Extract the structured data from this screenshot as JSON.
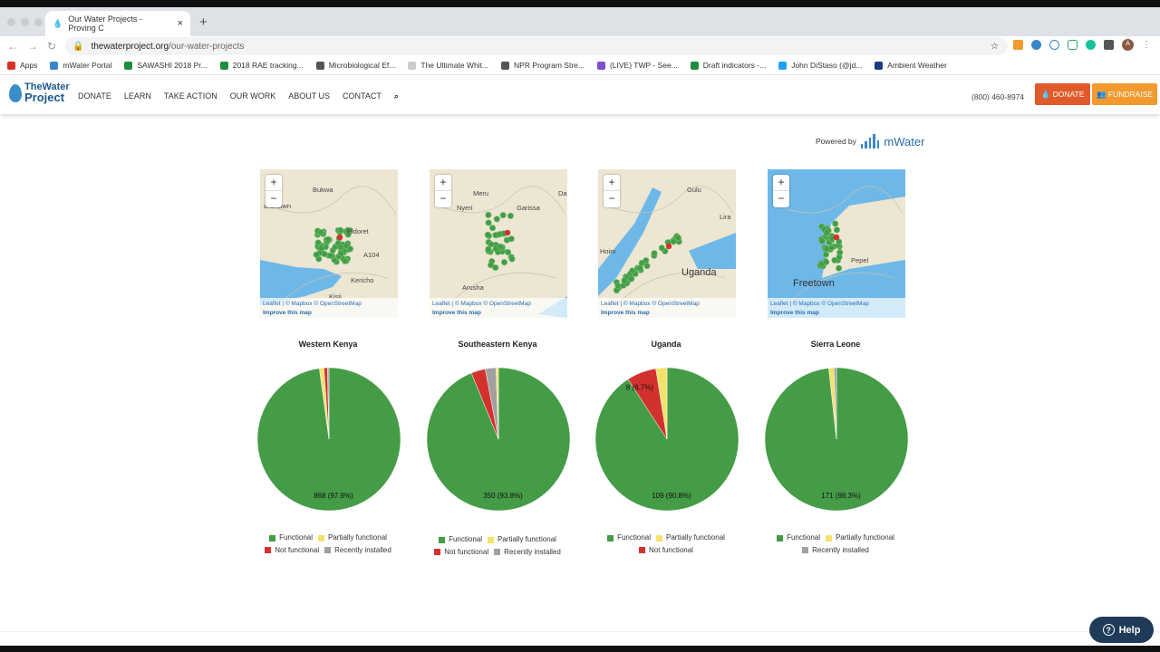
{
  "browser": {
    "tab_title": "Our Water Projects - Proving C",
    "url_domain": "thewaterproject.org",
    "url_path": "/our-water-projects",
    "avatar_letter": "A",
    "bookmarks": [
      {
        "label": "Apps",
        "color": "#d93025"
      },
      {
        "label": "mWater Portal",
        "color": "#3a86c8"
      },
      {
        "label": "SAWASHI 2018 Pr...",
        "color": "#1e8e3e"
      },
      {
        "label": "2018 RAE tracking...",
        "color": "#1e8e3e"
      },
      {
        "label": "Microbiological Ef...",
        "color": "#555555"
      },
      {
        "label": "The Ultimate Whit...",
        "color": "#cccccc"
      },
      {
        "label": "NPR Program Stre...",
        "color": "#555555"
      },
      {
        "label": "(LIVE) TWP - See...",
        "color": "#7b4fd0"
      },
      {
        "label": "Draft indicators -...",
        "color": "#1e8e3e"
      },
      {
        "label": "John DiStaso (@jd...",
        "color": "#1da1f2"
      },
      {
        "label": "Ambient Weather",
        "color": "#1a3a7a"
      }
    ]
  },
  "site": {
    "logo_top": "TheWater",
    "logo_bottom": "Project",
    "menu": [
      "DONATE",
      "LEARN",
      "TAKE ACTION",
      "OUR WORK",
      "ABOUT US",
      "CONTACT"
    ],
    "phone": "(800) 460-8974",
    "donate_label": "DONATE",
    "fundraise_label": "FUNDRAISE",
    "donate_color": "#e05a2b",
    "fundraise_color": "#f29a2e"
  },
  "powered": {
    "prefix": "Powered by",
    "brand": "mWater"
  },
  "map_common": {
    "zoom_in": "+",
    "zoom_out": "−",
    "attribution": "Leaflet | © Mapbox © OpenStreetMap",
    "improve": "Improve this map"
  },
  "maps": [
    {
      "places": [
        "Bukwa",
        "aka town",
        "Eldoret",
        "A104",
        "Kericho",
        "Kisii"
      ]
    },
    {
      "places": [
        "Meru",
        "Nyeri",
        "Garissa",
        "Arusha",
        "Da"
      ]
    },
    {
      "places": [
        "Gulu",
        "Lira",
        "Uganda",
        "Hoim"
      ]
    },
    {
      "places": [
        "Pepel",
        "Freetown"
      ]
    }
  ],
  "legend_colors": {
    "Functional": "#459c47",
    "Partially functional": "#f5e26c",
    "Not functional": "#d2322d",
    "Recently installed": "#a0a0a0"
  },
  "chart_data": [
    {
      "type": "pie",
      "title": "Western Kenya",
      "slices": [
        {
          "name": "Functional",
          "value": 868,
          "label": "868 (97.9%)"
        },
        {
          "name": "Partially functional",
          "value": 9
        },
        {
          "name": "Not functional",
          "value": 7
        },
        {
          "name": "Recently installed",
          "value": 3
        }
      ],
      "legend": [
        "Functional",
        "Partially functional",
        "Not functional",
        "Recently installed"
      ]
    },
    {
      "type": "pie",
      "title": "Southeastern Kenya",
      "slices": [
        {
          "name": "Functional",
          "value": 350,
          "label": "350 (93.8%)"
        },
        {
          "name": "Not functional",
          "value": 12
        },
        {
          "name": "Recently installed",
          "value": 9
        },
        {
          "name": "Partially functional",
          "value": 2
        }
      ],
      "legend": [
        "Functional",
        "Partially functional",
        "Not functional",
        "Recently installed"
      ]
    },
    {
      "type": "pie",
      "title": "Uganda",
      "slices": [
        {
          "name": "Functional",
          "value": 109,
          "label": "109 (90.8%)"
        },
        {
          "name": "Not functional",
          "value": 8,
          "label": "8 (6.7%)"
        },
        {
          "name": "Partially functional",
          "value": 3
        }
      ],
      "legend": [
        "Functional",
        "Partially functional",
        "Not functional"
      ]
    },
    {
      "type": "pie",
      "title": "Sierra Leone",
      "slices": [
        {
          "name": "Functional",
          "value": 171,
          "label": "171 (98.3%)"
        },
        {
          "name": "Partially functional",
          "value": 2
        },
        {
          "name": "Recently installed",
          "value": 1
        }
      ],
      "legend": [
        "Functional",
        "Partially functional",
        "Recently installed"
      ]
    }
  ],
  "help": {
    "label": "Help"
  }
}
